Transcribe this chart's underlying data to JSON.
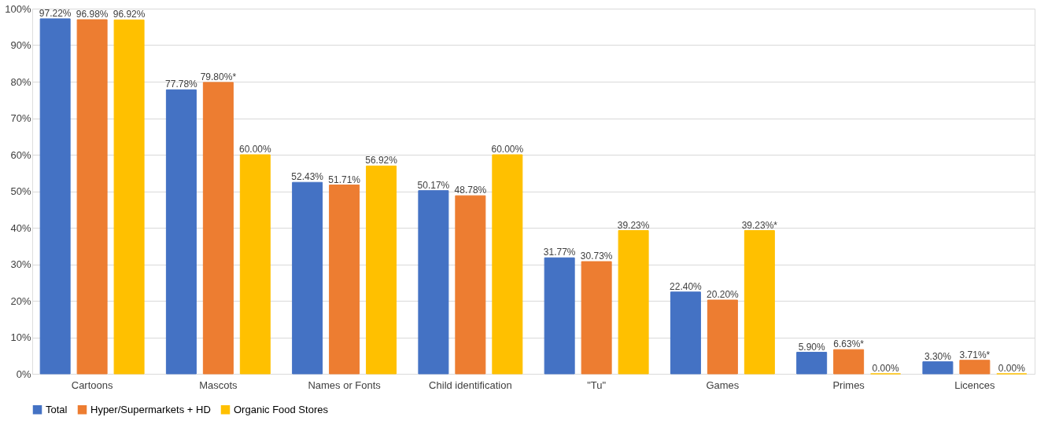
{
  "chart_data": {
    "type": "bar",
    "categories": [
      "Cartoons",
      "Mascots",
      "Names or Fonts",
      "Child identification",
      "\"Tu\"",
      "Games",
      "Primes",
      "Licences"
    ],
    "series": [
      {
        "name": "Total",
        "color": "#4472c4",
        "values": [
          97.22,
          77.78,
          52.43,
          50.17,
          31.77,
          22.4,
          5.9,
          3.3
        ],
        "value_labels": [
          "97.22%",
          "77.78%",
          "52.43%",
          "50.17%",
          "31.77%",
          "22.40%",
          "5.90%",
          "3.30%"
        ]
      },
      {
        "name": "Hyper/Supermarkets + HD",
        "color": "#ed7d31",
        "values": [
          96.98,
          79.8,
          51.71,
          48.78,
          30.73,
          20.2,
          6.63,
          3.71
        ],
        "value_labels": [
          "96.98%",
          "79.80%*",
          "51.71%",
          "48.78%",
          "30.73%",
          "20.20%",
          "6.63%*",
          "3.71%*"
        ]
      },
      {
        "name": "Organic Food Stores",
        "color": "#ffc000",
        "values": [
          96.92,
          60.0,
          56.92,
          60.0,
          39.23,
          39.23,
          0.0,
          0.0
        ],
        "value_labels": [
          "96.92%",
          "60.00%",
          "56.92%",
          "60.00%",
          "39.23%",
          "39.23%*",
          "0.00%",
          "0.00%"
        ]
      }
    ],
    "ylim": [
      0,
      100
    ],
    "yticks": [
      {
        "value": 0,
        "label": "0%"
      },
      {
        "value": 10,
        "label": "10%"
      },
      {
        "value": 20,
        "label": "20%"
      },
      {
        "value": 30,
        "label": "30%"
      },
      {
        "value": 40,
        "label": "40%"
      },
      {
        "value": 50,
        "label": "50%"
      },
      {
        "value": 60,
        "label": "60%"
      },
      {
        "value": 70,
        "label": "70%"
      },
      {
        "value": 80,
        "label": "80%"
      },
      {
        "value": 90,
        "label": "90%"
      },
      {
        "value": 100,
        "label": "100%"
      }
    ],
    "grid": "y",
    "legend": "bottom"
  }
}
